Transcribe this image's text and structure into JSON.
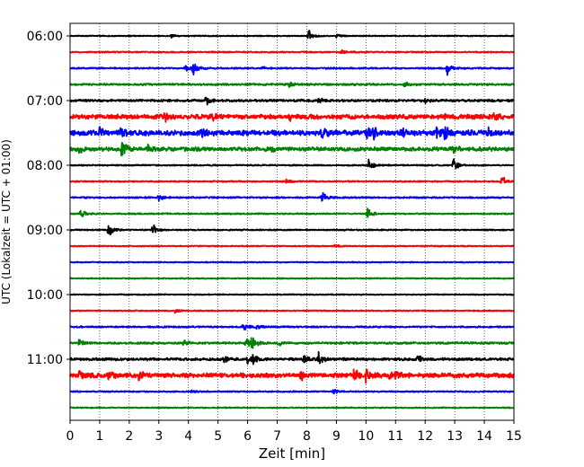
{
  "chart_data": {
    "type": "line",
    "title": "",
    "xlabel": "Zeit  [min]",
    "ylabel": "UTC (Lokalzeit = UTC + 01:00)",
    "xlim": [
      0,
      15
    ],
    "x_ticks": [
      "0",
      "1",
      "2",
      "3",
      "4",
      "5",
      "6",
      "7",
      "8",
      "9",
      "10",
      "11",
      "12",
      "13",
      "14",
      "15"
    ],
    "y_tick_labels": [
      {
        "label": "06:00",
        "trace": 0
      },
      {
        "label": "07:00",
        "trace": 4
      },
      {
        "label": "08:00",
        "trace": 8
      },
      {
        "label": "09:00",
        "trace": 12
      },
      {
        "label": "10:00",
        "trace": 16
      },
      {
        "label": "11:00",
        "trace": 20
      }
    ],
    "grid": "vertical-dotted",
    "colors": [
      "#000000",
      "#ff0000",
      "#0000ff",
      "#008000"
    ],
    "traces": [
      {
        "start": "06:00",
        "noise": 0.08,
        "events": [
          [
            3.4,
            0.4
          ],
          [
            8.05,
            1.0
          ],
          [
            9.0,
            0.3
          ]
        ]
      },
      {
        "start": "06:15",
        "noise": 0.1,
        "events": [
          [
            9.15,
            0.4
          ]
        ]
      },
      {
        "start": "06:30",
        "noise": 0.12,
        "events": [
          [
            3.9,
            0.5
          ],
          [
            4.15,
            1.1
          ],
          [
            6.5,
            0.3
          ],
          [
            12.75,
            0.9
          ]
        ]
      },
      {
        "start": "06:45",
        "noise": 0.15,
        "events": [
          [
            7.4,
            0.4
          ],
          [
            11.3,
            0.3
          ]
        ]
      },
      {
        "start": "07:00",
        "noise": 0.18,
        "events": [
          [
            4.6,
            0.6
          ],
          [
            8.4,
            0.4
          ],
          [
            12.0,
            0.3
          ]
        ]
      },
      {
        "start": "07:15",
        "noise": 0.35,
        "events": [
          [
            3.2,
            0.6
          ],
          [
            4.8,
            0.5
          ],
          [
            7.4,
            0.5
          ],
          [
            12.7,
            0.5
          ],
          [
            14.3,
            0.6
          ]
        ]
      },
      {
        "start": "07:30",
        "noise": 0.4,
        "events": [
          [
            1.0,
            0.8
          ],
          [
            1.7,
            0.7
          ],
          [
            4.4,
            0.6
          ],
          [
            8.5,
            0.7
          ],
          [
            10.0,
            0.8
          ],
          [
            10.25,
            0.8
          ],
          [
            11.2,
            0.7
          ],
          [
            12.4,
            1.0
          ],
          [
            12.65,
            1.1
          ],
          [
            14.15,
            0.7
          ]
        ]
      },
      {
        "start": "07:45",
        "noise": 0.3,
        "events": [
          [
            0.3,
            0.6
          ],
          [
            1.75,
            1.1
          ],
          [
            2.6,
            0.6
          ],
          [
            6.8,
            0.4
          ],
          [
            12.95,
            0.5
          ]
        ]
      },
      {
        "start": "08:00",
        "noise": 0.1,
        "events": [
          [
            10.1,
            1.2
          ],
          [
            12.95,
            1.1
          ]
        ]
      },
      {
        "start": "08:15",
        "noise": 0.1,
        "events": [
          [
            7.3,
            0.4
          ],
          [
            14.6,
            0.8
          ]
        ]
      },
      {
        "start": "08:30",
        "noise": 0.12,
        "events": [
          [
            3.0,
            0.4
          ],
          [
            8.5,
            1.1
          ]
        ]
      },
      {
        "start": "08:45",
        "noise": 0.1,
        "events": [
          [
            0.35,
            0.8
          ],
          [
            10.05,
            1.0
          ]
        ]
      },
      {
        "start": "09:00",
        "noise": 0.1,
        "events": [
          [
            1.3,
            1.0
          ],
          [
            2.8,
            1.0
          ]
        ]
      },
      {
        "start": "09:15",
        "noise": 0.08,
        "events": [
          [
            8.95,
            0.3
          ]
        ]
      },
      {
        "start": "09:30",
        "noise": 0.08,
        "events": []
      },
      {
        "start": "09:45",
        "noise": 0.08,
        "events": []
      },
      {
        "start": "10:00",
        "noise": 0.08,
        "events": []
      },
      {
        "start": "10:15",
        "noise": 0.08,
        "events": [
          [
            3.55,
            0.4
          ]
        ]
      },
      {
        "start": "10:30",
        "noise": 0.12,
        "events": [
          [
            5.85,
            0.7
          ],
          [
            6.3,
            0.4
          ]
        ]
      },
      {
        "start": "10:45",
        "noise": 0.15,
        "events": [
          [
            0.3,
            0.7
          ],
          [
            3.85,
            0.5
          ],
          [
            5.95,
            1.2
          ],
          [
            6.15,
            1.0
          ],
          [
            7.05,
            0.5
          ]
        ]
      },
      {
        "start": "11:00",
        "noise": 0.2,
        "events": [
          [
            5.2,
            0.5
          ],
          [
            6.0,
            0.8
          ],
          [
            6.2,
            0.6
          ],
          [
            7.9,
            0.5
          ],
          [
            8.4,
            1.2
          ],
          [
            11.75,
            0.5
          ]
        ]
      },
      {
        "start": "11:15",
        "noise": 0.35,
        "events": [
          [
            0.3,
            0.6
          ],
          [
            1.3,
            0.5
          ],
          [
            2.3,
            0.7
          ],
          [
            7.8,
            0.9
          ],
          [
            9.6,
            0.9
          ],
          [
            10.0,
            1.1
          ],
          [
            10.8,
            0.6
          ],
          [
            11.0,
            0.7
          ]
        ]
      },
      {
        "start": "11:30",
        "noise": 0.1,
        "events": [
          [
            4.1,
            0.3
          ],
          [
            8.9,
            0.4
          ]
        ]
      },
      {
        "start": "11:45",
        "noise": 0.08,
        "events": []
      }
    ]
  }
}
